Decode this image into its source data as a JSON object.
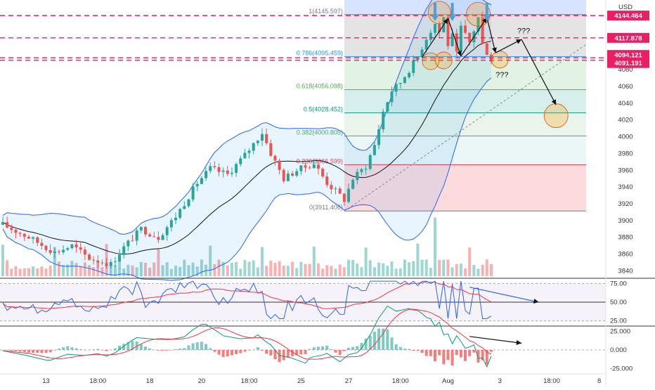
{
  "chart_data": {
    "type": "candlestick",
    "title": "",
    "price_axis": {
      "currency": "USD",
      "ticks": [
        3840,
        3860,
        3880,
        3900,
        3920,
        3940,
        3960,
        3980,
        4000,
        4020,
        4040,
        4060,
        4080
      ],
      "range": [
        3832,
        4163
      ],
      "highlighted_levels": [
        {
          "value": 4144.464,
          "label": "4144.464"
        },
        {
          "value": 4117.878,
          "label": "4117.878"
        },
        {
          "value": 4094.121,
          "label": "4094.121"
        },
        {
          "value": 4091.191,
          "label": "4091.191"
        }
      ]
    },
    "time_axis": {
      "ticks": [
        {
          "label": "13",
          "i": 10
        },
        {
          "label": "18:00",
          "i": 22
        },
        {
          "label": "18",
          "i": 34
        },
        {
          "label": "20",
          "i": 46
        },
        {
          "label": "18:00",
          "i": 57
        },
        {
          "label": "25",
          "i": 69
        },
        {
          "label": "27",
          "i": 80
        },
        {
          "label": "18:00",
          "i": 92
        },
        {
          "label": "Aug",
          "i": 103
        },
        {
          "label": "3",
          "i": 115
        },
        {
          "label": "18:00",
          "i": 127
        },
        {
          "label": "8",
          "i": 138
        }
      ],
      "bars_total": 140
    },
    "fibonacci": [
      {
        "ratio": 1,
        "price": 4145.597,
        "label": "1(4145.597)"
      },
      {
        "ratio": 0.786,
        "price": 4095.459,
        "label": "0.786(4095.459)"
      },
      {
        "ratio": 0.618,
        "price": 4056.098,
        "label": "0.618(4056.098)"
      },
      {
        "ratio": 0.5,
        "price": 4028.452,
        "label": "0.5(4028.452)"
      },
      {
        "ratio": 0.382,
        "price": 4000.805,
        "label": "0.382(4000.805)"
      },
      {
        "ratio": 0.236,
        "price": 3966.599,
        "label": "0.236(3966.599)"
      },
      {
        "ratio": 0,
        "price": 3911.406,
        "label": "0(3911.406)"
      }
    ],
    "annotations": [
      "???",
      "???"
    ],
    "rsi": {
      "levels": [
        75,
        50,
        25
      ],
      "tick_labels": [
        "75.00",
        "50.00",
        "25.00"
      ]
    },
    "macd": {
      "levels": [
        25,
        0,
        -25
      ],
      "tick_labels": [
        "25.000",
        "0.000",
        "-25.000"
      ]
    },
    "colors": {
      "up": "#26a69a",
      "down": "#ef5350",
      "band": "#2962ff",
      "ma": "#111111",
      "level_line": "#e91e63",
      "rsi": "#2962ff",
      "rsi_signal": "#f23645",
      "macd": "#2962ff",
      "macd_signal": "#f23645"
    }
  }
}
